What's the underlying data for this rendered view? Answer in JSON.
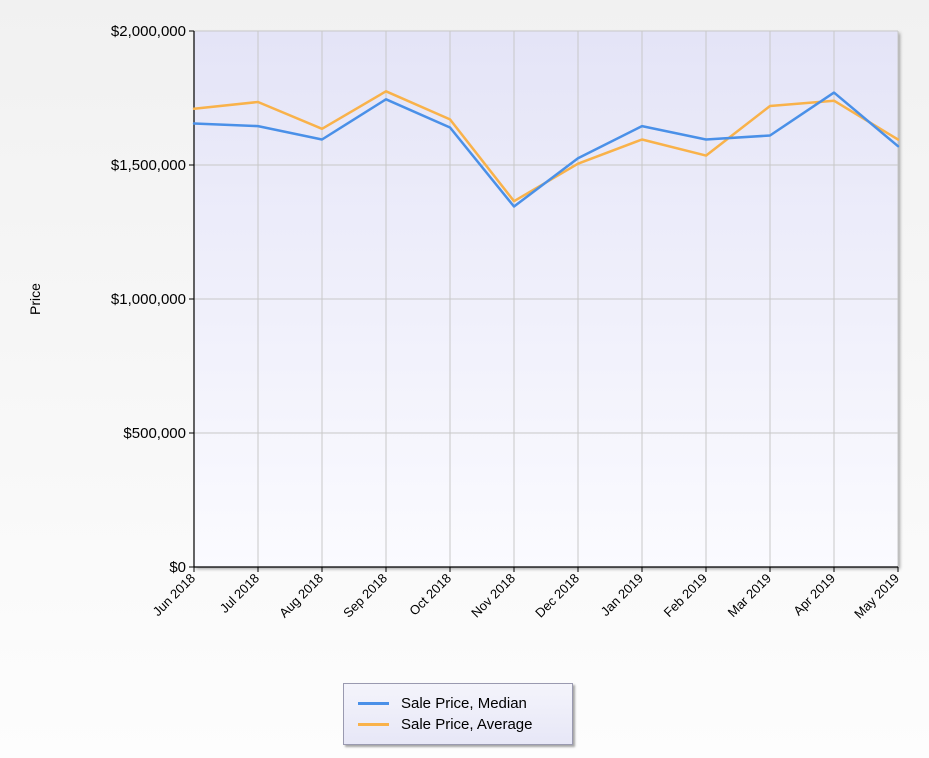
{
  "chart_data": {
    "type": "line",
    "title": "",
    "xlabel": "",
    "ylabel": "Price",
    "categories": [
      "Jun 2018",
      "Jul 2018",
      "Aug 2018",
      "Sep 2018",
      "Oct 2018",
      "Nov 2018",
      "Dec 2018",
      "Jan 2019",
      "Feb 2019",
      "Mar 2019",
      "Apr 2019",
      "May 2019"
    ],
    "ylim": [
      0,
      2000000
    ],
    "yticks": [
      0,
      500000,
      1000000,
      1500000,
      2000000
    ],
    "ytick_labels": [
      "$0",
      "$500,000",
      "$1,000,000",
      "$1,500,000",
      "$2,000,000"
    ],
    "grid": true,
    "legend_position": "bottom-center",
    "series": [
      {
        "name": "Sale Price, Median",
        "color": "#4a90e8",
        "values": [
          1655000,
          1645000,
          1595000,
          1745000,
          1640000,
          1345000,
          1525000,
          1645000,
          1595000,
          1610000,
          1770000,
          1570000
        ]
      },
      {
        "name": "Sale Price, Average",
        "color": "#f9b24a",
        "values": [
          1710000,
          1735000,
          1635000,
          1775000,
          1670000,
          1365000,
          1505000,
          1595000,
          1535000,
          1720000,
          1740000,
          1595000
        ]
      }
    ]
  },
  "colors": {
    "plot_background_top": "#e4e4f7",
    "plot_background_bottom": "#fbfbff",
    "grid_line": "#c8c8c8",
    "axis_line": "#000000"
  }
}
